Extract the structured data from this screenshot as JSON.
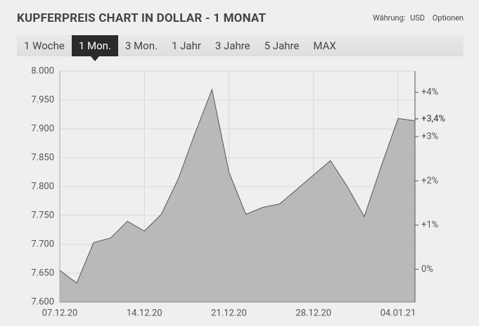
{
  "header": {
    "title": "KUPFERPREIS CHART IN DOLLAR - 1 MONAT",
    "currency_label": "Währung:",
    "currency": "USD",
    "options": "Optionen"
  },
  "tabs": [
    "1 Woche",
    "1 Mon.",
    "3 Mon.",
    "1 Jahr",
    "3 Jahre",
    "5 Jahre",
    "MAX"
  ],
  "active_tab": 1,
  "chart_data": {
    "type": "area",
    "categories": [
      "07.12.20",
      null,
      null,
      null,
      null,
      "14.12.20",
      null,
      null,
      null,
      null,
      "21.12.20",
      null,
      null,
      null,
      null,
      "28.12.20",
      null,
      null,
      null,
      null,
      "04.01.21",
      null
    ],
    "values": [
      7.655,
      7.633,
      7.703,
      7.711,
      7.74,
      7.723,
      7.752,
      7.813,
      7.893,
      7.968,
      7.825,
      7.752,
      7.764,
      7.77,
      7.795,
      7.82,
      7.845,
      7.8,
      7.748,
      7.835,
      7.918,
      7.914
    ],
    "color": "#b3b3b3",
    "line_color": "#555555",
    "ylim": [
      7.6,
      8.0
    ],
    "yticks": [
      {
        "value": 7.6,
        "label": "7.600"
      },
      {
        "value": 7.65,
        "label": "7.650"
      },
      {
        "value": 7.7,
        "label": "7.700"
      },
      {
        "value": 7.75,
        "label": "7.750"
      },
      {
        "value": 7.8,
        "label": "7.800"
      },
      {
        "value": 7.85,
        "label": "7.850"
      },
      {
        "value": 7.9,
        "label": "7.900"
      },
      {
        "value": 7.95,
        "label": "7.950"
      },
      {
        "value": 8.0,
        "label": "8.000"
      }
    ],
    "y2lim": [
      -0.74,
      4.48
    ],
    "y2ticks": [
      {
        "value": 0,
        "label": "0%"
      },
      {
        "value": 1,
        "label": "+1%"
      },
      {
        "value": 2,
        "label": "+2%"
      },
      {
        "value": 3,
        "label": "+3%"
      },
      {
        "value": 4,
        "label": "+4%"
      }
    ],
    "annotation": {
      "value": 3.4,
      "label": "+3,4%",
      "axis": "y2"
    },
    "grid": true
  }
}
